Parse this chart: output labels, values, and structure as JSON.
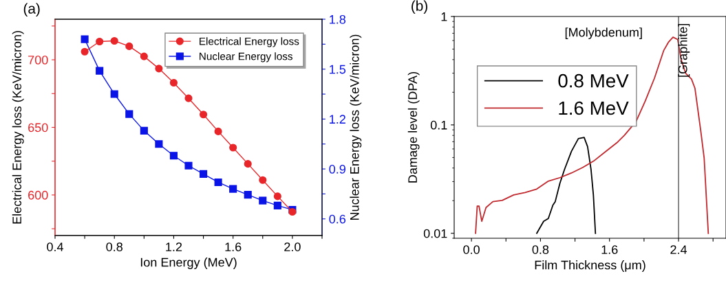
{
  "chart_data": [
    {
      "type": "line",
      "title": "(a)",
      "xlabel": "Ion Energy (MeV)",
      "ylabel": "Electrical Energy loss (KeV/micron)",
      "y2label": "Nuclear Energy loss (KeV/micron)",
      "x": [
        0.6,
        0.7,
        0.8,
        0.9,
        1.0,
        1.1,
        1.2,
        1.3,
        1.4,
        1.5,
        1.6,
        1.7,
        1.8,
        1.9,
        2.0
      ],
      "series": [
        {
          "name": "Electrical Energy loss",
          "color": "#e8262a",
          "marker": "circle",
          "values": [
            706,
            713.5,
            714,
            710,
            702.5,
            693.5,
            683,
            671.5,
            659.5,
            647,
            635,
            623,
            611,
            599,
            587.5
          ]
        },
        {
          "name": "Nuclear Energy loss",
          "color": "#0a14e6",
          "marker": "square",
          "axis": "y2",
          "values": [
            1.68,
            1.49,
            1.35,
            1.23,
            1.13,
            1.05,
            0.98,
            0.92,
            0.87,
            0.82,
            0.78,
            0.745,
            0.71,
            0.68,
            0.655
          ]
        }
      ],
      "xlim": [
        0.4,
        2.2
      ],
      "xticks": [
        {
          "value": 0.4,
          "label": "0.4"
        },
        {
          "value": 0.6,
          "label": null
        },
        {
          "value": 0.8,
          "label": "0.8"
        },
        {
          "value": 1.0,
          "label": null
        },
        {
          "value": 1.2,
          "label": "1.2"
        },
        {
          "value": 1.4,
          "label": null
        },
        {
          "value": 1.6,
          "label": "1.6"
        },
        {
          "value": 1.8,
          "label": null
        },
        {
          "value": 2.0,
          "label": "2.0"
        },
        {
          "value": 2.2,
          "label": null
        }
      ],
      "ylim": [
        570,
        730
      ],
      "yticks": [
        {
          "value": 575,
          "label": null
        },
        600,
        {
          "value": 625,
          "label": null
        },
        650,
        {
          "value": 675,
          "label": null
        },
        700,
        {
          "value": 725,
          "label": null
        }
      ],
      "y2lim": [
        0.5,
        1.8
      ],
      "y2ticks": [
        0.6,
        {
          "value": 0.75,
          "label": null
        },
        0.9,
        {
          "value": 1.05,
          "label": null
        },
        1.2,
        {
          "value": 1.35,
          "label": null
        },
        1.5,
        {
          "value": 1.65,
          "label": null
        },
        1.8
      ],
      "legend": "top right",
      "grid": false
    },
    {
      "type": "line",
      "title": "(b)",
      "xlabel": "Film Thickness (μm)",
      "ylabel": "Damage level (DPA)",
      "log": "y",
      "series": [
        {
          "name": "0.8 MeV",
          "color": "#000000",
          "x": [
            0.757,
            0.837,
            0.891,
            0.944,
            0.971,
            1.025,
            1.078,
            1.159,
            1.239,
            1.306,
            1.346,
            1.386,
            1.413,
            1.437
          ],
          "values": [
            0.01,
            0.0129,
            0.0137,
            0.0182,
            0.0196,
            0.0289,
            0.0387,
            0.0571,
            0.0747,
            0.0766,
            0.063,
            0.0387,
            0.0227,
            0.01
          ]
        },
        {
          "name": "1.6 MeV",
          "color": "#c0282d",
          "x": [
            0.048,
            0.067,
            0.088,
            0.12,
            0.169,
            0.249,
            0.356,
            0.49,
            0.623,
            0.757,
            0.891,
            1.025,
            1.159,
            1.292,
            1.426,
            1.56,
            1.694,
            1.774,
            1.908,
            2.015,
            2.122,
            2.229,
            2.282,
            2.336,
            2.39,
            2.43,
            2.483,
            2.55,
            2.59,
            2.657,
            2.697,
            2.745
          ],
          "values": [
            0.01,
            0.0178,
            0.0178,
            0.0129,
            0.0173,
            0.0196,
            0.0201,
            0.0226,
            0.0238,
            0.0256,
            0.0303,
            0.0326,
            0.036,
            0.0406,
            0.047,
            0.0571,
            0.0694,
            0.0804,
            0.1077,
            0.1667,
            0.271,
            0.487,
            0.577,
            0.645,
            0.614,
            0.401,
            0.299,
            0.265,
            0.218,
            0.0886,
            0.0493,
            0.01
          ]
        }
      ],
      "xlim": [
        -0.2,
        2.95
      ],
      "xticks": [
        {
          "value": 0.0,
          "label": "0.0"
        },
        {
          "value": 0.4,
          "label": null
        },
        {
          "value": 0.8,
          "label": "0.8"
        },
        {
          "value": 1.2,
          "label": null
        },
        {
          "value": 1.6,
          "label": "1.6"
        },
        {
          "value": 2.0,
          "label": null
        },
        {
          "value": 2.4,
          "label": "2.4"
        },
        {
          "value": 2.8,
          "label": null
        }
      ],
      "ylim": [
        0.009,
        1
      ],
      "yticks": [
        0.01,
        0.1,
        1
      ],
      "ref_lines": [
        {
          "axis": "x",
          "value": 2.4,
          "color": "#555555"
        }
      ],
      "annotations": [
        "[Molybdenum]",
        "[Graphite]"
      ],
      "legend": "top left",
      "grid": false
    }
  ]
}
